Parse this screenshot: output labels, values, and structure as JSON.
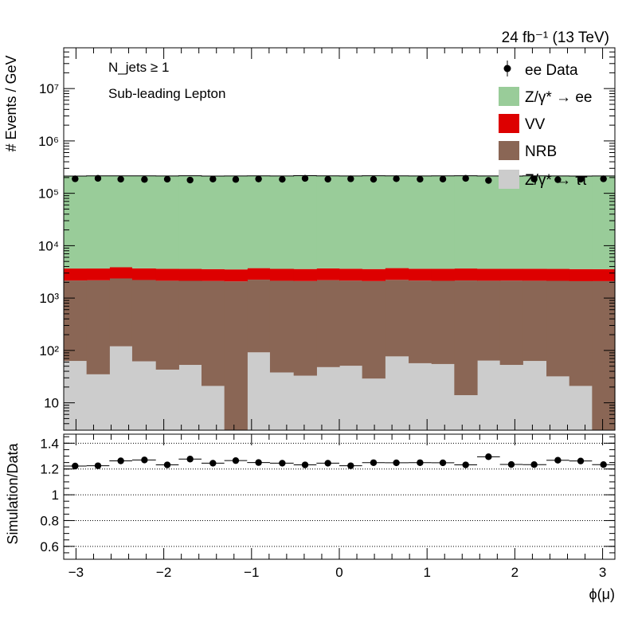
{
  "lumi_label": "24 fb⁻¹ (13 TeV)",
  "annotations": {
    "njets": "N_jets ≥ 1",
    "lepton": "Sub-leading Lepton"
  },
  "chart_data": [
    {
      "type": "bar",
      "stacked": true,
      "log_y": true,
      "ylabel": "# Events / GeV",
      "xlim": [
        -3.14,
        3.14
      ],
      "ylim": [
        3,
        60000000
      ],
      "y_ticks": [
        10,
        100,
        1000,
        10000,
        100000,
        1000000,
        10000000
      ],
      "y_tick_labels": [
        "10",
        "10²",
        "10³",
        "10⁴",
        "10⁵",
        "10⁶",
        "10⁷"
      ],
      "x_tick_values": [
        -3,
        -2,
        -1,
        0,
        1,
        2,
        3
      ],
      "bin_edges": [
        -3.14,
        -2.88,
        -2.62,
        -2.36,
        -2.09,
        -1.83,
        -1.57,
        -1.31,
        -1.05,
        -0.79,
        -0.52,
        -0.26,
        0.0,
        0.26,
        0.52,
        0.79,
        1.05,
        1.31,
        1.57,
        1.83,
        2.09,
        2.36,
        2.62,
        2.88,
        3.14
      ],
      "legend_position": "top-right",
      "series": [
        {
          "name": "Z/γ* → ττ",
          "color": "#cccccc",
          "values": [
            63,
            35,
            120,
            62,
            43,
            53,
            21,
            3,
            92,
            38,
            33,
            48,
            51,
            29,
            77,
            57,
            55,
            14,
            64,
            53,
            63,
            32,
            21,
            3
          ]
        },
        {
          "name": "NRB",
          "color": "#8a6655",
          "values": [
            2100,
            2150,
            2250,
            2150,
            2100,
            2080,
            2100,
            2080,
            2150,
            2100,
            2080,
            2150,
            2100,
            2080,
            2150,
            2100,
            2080,
            2150,
            2080,
            2100,
            2080,
            2100,
            2080,
            2100
          ]
        },
        {
          "name": "VV",
          "color": "#dd0000",
          "values": [
            1500,
            1480,
            1500,
            1470,
            1470,
            1470,
            1450,
            1440,
            1480,
            1470,
            1470,
            1480,
            1480,
            1470,
            1500,
            1470,
            1480,
            1500,
            1470,
            1460,
            1480,
            1470,
            1470,
            1460
          ]
        },
        {
          "name": "Z/γ* → ee",
          "color": "#99cc99",
          "values": [
            210000,
            212000,
            211000,
            212000,
            211000,
            213000,
            210000,
            211000,
            212000,
            211000,
            214000,
            212000,
            211000,
            213000,
            212000,
            211000,
            212000,
            213000,
            211000,
            210000,
            212000,
            211000,
            210000,
            211000
          ]
        }
      ],
      "data": {
        "name": "ee Data",
        "x": [
          -3.01,
          -2.75,
          -2.49,
          -2.22,
          -1.96,
          -1.7,
          -1.44,
          -1.18,
          -0.92,
          -0.65,
          -0.39,
          -0.13,
          0.13,
          0.39,
          0.65,
          0.92,
          1.18,
          1.44,
          1.7,
          1.96,
          2.22,
          2.49,
          2.75,
          3.01
        ],
        "y": [
          189000,
          193000,
          186000,
          184000,
          186000,
          179000,
          187000,
          184000,
          188000,
          185000,
          193000,
          186000,
          189000,
          185000,
          190000,
          186000,
          187000,
          193000,
          176000,
          184000,
          187000,
          182000,
          186000,
          189000
        ]
      }
    },
    {
      "type": "scatter",
      "ylabel": "Simulation/Data",
      "xlabel": "ϕ(μ)",
      "xlim": [
        -3.14,
        3.14
      ],
      "ylim": [
        0.5,
        1.47
      ],
      "y_ticks": [
        0.6,
        0.8,
        1.0,
        1.2,
        1.4
      ],
      "y_tick_labels": [
        "0.6",
        "0.8",
        "1",
        "1.2",
        "1.4"
      ],
      "x_ticks": [
        -3,
        -2,
        -1,
        0,
        1,
        2,
        3
      ],
      "x_tick_labels": [
        "−3",
        "−2",
        "−1",
        "0",
        "1",
        "2",
        "3"
      ],
      "grid_y": [
        0.6,
        0.8,
        1.0,
        1.2,
        1.4
      ],
      "x": [
        -3.01,
        -2.75,
        -2.49,
        -2.22,
        -1.96,
        -1.7,
        -1.44,
        -1.18,
        -0.92,
        -0.65,
        -0.39,
        -0.13,
        0.13,
        0.39,
        0.65,
        0.92,
        1.18,
        1.44,
        1.7,
        1.96,
        2.22,
        2.49,
        2.75,
        3.01
      ],
      "y": [
        1.223,
        1.225,
        1.263,
        1.27,
        1.232,
        1.277,
        1.245,
        1.265,
        1.25,
        1.245,
        1.232,
        1.245,
        1.225,
        1.249,
        1.248,
        1.249,
        1.248,
        1.232,
        1.295,
        1.235,
        1.234,
        1.268,
        1.262,
        1.234
      ]
    }
  ]
}
